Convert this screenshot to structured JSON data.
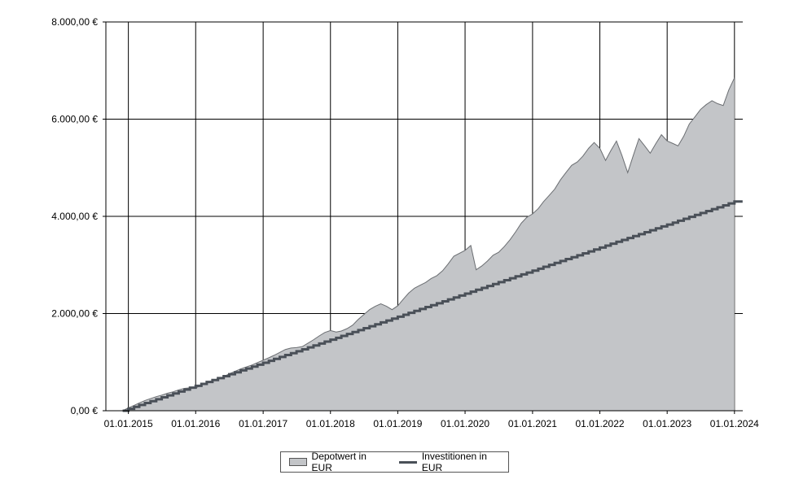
{
  "chart_data": {
    "type": "area",
    "currency_format": "€",
    "y_ticks": [
      "0,00 €",
      "2.000,00 €",
      "4.000,00 €",
      "6.000,00 €",
      "8.000,00 €"
    ],
    "x_ticks": [
      "01.01.2015",
      "01.01.2016",
      "01.01.2017",
      "01.01.2018",
      "01.01.2019",
      "01.01.2020",
      "01.01.2021",
      "01.01.2022",
      "01.01.2023",
      "01.01.2024"
    ],
    "ylim": [
      0,
      8000
    ],
    "xlim": [
      "2014-09-01",
      "2024-02-15"
    ],
    "grid": true,
    "legend_position": "bottom-center",
    "series": [
      {
        "name": "Depotwert in EUR",
        "kind": "area",
        "color": "#c3c5c8",
        "edge_color": "#6b6e72",
        "points": [
          [
            "2014-12-01",
            0
          ],
          [
            "2015-01-01",
            60
          ],
          [
            "2015-02-01",
            110
          ],
          [
            "2015-03-01",
            160
          ],
          [
            "2015-04-01",
            210
          ],
          [
            "2015-05-01",
            250
          ],
          [
            "2015-06-01",
            290
          ],
          [
            "2015-07-01",
            320
          ],
          [
            "2015-08-01",
            360
          ],
          [
            "2015-09-01",
            390
          ],
          [
            "2015-10-01",
            430
          ],
          [
            "2015-11-01",
            460
          ],
          [
            "2015-12-01",
            470
          ],
          [
            "2016-01-01",
            470
          ],
          [
            "2016-02-01",
            520
          ],
          [
            "2016-03-01",
            580
          ],
          [
            "2016-04-01",
            620
          ],
          [
            "2016-05-01",
            660
          ],
          [
            "2016-06-01",
            700
          ],
          [
            "2016-07-01",
            760
          ],
          [
            "2016-08-01",
            810
          ],
          [
            "2016-09-01",
            860
          ],
          [
            "2016-10-01",
            900
          ],
          [
            "2016-11-01",
            940
          ],
          [
            "2016-12-01",
            990
          ],
          [
            "2017-01-01",
            1040
          ],
          [
            "2017-02-01",
            1090
          ],
          [
            "2017-03-01",
            1140
          ],
          [
            "2017-04-01",
            1200
          ],
          [
            "2017-05-01",
            1260
          ],
          [
            "2017-06-01",
            1290
          ],
          [
            "2017-07-01",
            1300
          ],
          [
            "2017-08-01",
            1320
          ],
          [
            "2017-09-01",
            1390
          ],
          [
            "2017-10-01",
            1460
          ],
          [
            "2017-11-01",
            1540
          ],
          [
            "2017-12-01",
            1610
          ],
          [
            "2018-01-01",
            1650
          ],
          [
            "2018-02-01",
            1620
          ],
          [
            "2018-03-01",
            1640
          ],
          [
            "2018-04-01",
            1690
          ],
          [
            "2018-05-01",
            1760
          ],
          [
            "2018-06-01",
            1880
          ],
          [
            "2018-07-01",
            1980
          ],
          [
            "2018-08-01",
            2080
          ],
          [
            "2018-09-01",
            2150
          ],
          [
            "2018-10-01",
            2200
          ],
          [
            "2018-11-01",
            2150
          ],
          [
            "2018-12-01",
            2080
          ],
          [
            "2019-01-01",
            2160
          ],
          [
            "2019-02-01",
            2300
          ],
          [
            "2019-03-01",
            2420
          ],
          [
            "2019-04-01",
            2520
          ],
          [
            "2019-05-01",
            2580
          ],
          [
            "2019-06-01",
            2640
          ],
          [
            "2019-07-01",
            2720
          ],
          [
            "2019-08-01",
            2780
          ],
          [
            "2019-09-01",
            2880
          ],
          [
            "2019-10-01",
            3020
          ],
          [
            "2019-11-01",
            3180
          ],
          [
            "2020-01-01",
            3300
          ],
          [
            "2020-02-01",
            3400
          ],
          [
            "2020-03-01",
            2900
          ],
          [
            "2020-04-01",
            2980
          ],
          [
            "2020-05-01",
            3080
          ],
          [
            "2020-06-01",
            3200
          ],
          [
            "2020-07-01",
            3260
          ],
          [
            "2020-08-01",
            3380
          ],
          [
            "2020-09-01",
            3520
          ],
          [
            "2020-10-01",
            3680
          ],
          [
            "2020-11-01",
            3860
          ],
          [
            "2020-12-01",
            3980
          ],
          [
            "2021-01-01",
            4050
          ],
          [
            "2021-02-01",
            4160
          ],
          [
            "2021-03-01",
            4300
          ],
          [
            "2021-04-01",
            4430
          ],
          [
            "2021-05-01",
            4560
          ],
          [
            "2021-06-01",
            4750
          ],
          [
            "2021-07-01",
            4900
          ],
          [
            "2021-08-01",
            5050
          ],
          [
            "2021-09-01",
            5120
          ],
          [
            "2021-10-01",
            5240
          ],
          [
            "2021-11-01",
            5400
          ],
          [
            "2021-12-01",
            5520
          ],
          [
            "2022-01-01",
            5400
          ],
          [
            "2022-02-01",
            5150
          ],
          [
            "2022-03-01",
            5350
          ],
          [
            "2022-04-01",
            5550
          ],
          [
            "2022-05-01",
            5250
          ],
          [
            "2022-06-01",
            4900
          ],
          [
            "2022-07-01",
            5250
          ],
          [
            "2022-08-01",
            5600
          ],
          [
            "2022-09-01",
            5450
          ],
          [
            "2022-10-01",
            5300
          ],
          [
            "2022-11-01",
            5500
          ],
          [
            "2022-12-01",
            5680
          ],
          [
            "2023-01-01",
            5550
          ],
          [
            "2023-02-01",
            5500
          ],
          [
            "2023-03-01",
            5450
          ],
          [
            "2023-04-01",
            5650
          ],
          [
            "2023-05-01",
            5900
          ],
          [
            "2023-06-01",
            6050
          ],
          [
            "2023-07-01",
            6200
          ],
          [
            "2023-08-01",
            6300
          ],
          [
            "2023-09-01",
            6380
          ],
          [
            "2023-10-01",
            6320
          ],
          [
            "2023-11-01",
            6280
          ],
          [
            "2023-12-01",
            6600
          ],
          [
            "2024-01-01",
            6850
          ]
        ]
      },
      {
        "name": "Investitionen in EUR",
        "kind": "step-line",
        "color": "#4a5058",
        "start": "2014-12-01",
        "end": "2024-01-01",
        "start_value": 0,
        "monthly_increment": 39.5
      }
    ]
  },
  "legend": {
    "area_label": "Depotwert in EUR",
    "line_label": "Investitionen in EUR"
  }
}
